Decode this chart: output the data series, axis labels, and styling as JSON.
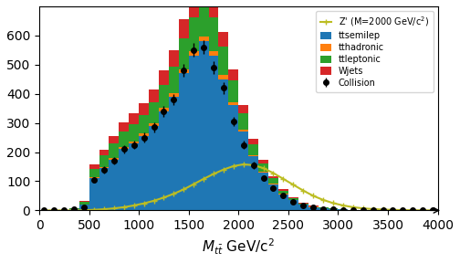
{
  "bin_edges": [
    0,
    100,
    200,
    300,
    400,
    500,
    600,
    700,
    800,
    900,
    1000,
    1100,
    1200,
    1300,
    1400,
    1500,
    1600,
    1700,
    1800,
    1900,
    2000,
    2100,
    2200,
    2300,
    2400,
    2500,
    2600,
    2700,
    2800,
    2900,
    3000,
    3100,
    3200,
    3300,
    3400,
    3500,
    3600,
    3700,
    3800,
    3900,
    4000
  ],
  "ttsemilep": [
    0,
    0,
    0,
    5,
    20,
    110,
    145,
    175,
    210,
    230,
    255,
    290,
    340,
    390,
    470,
    530,
    580,
    530,
    450,
    360,
    270,
    185,
    130,
    90,
    55,
    35,
    20,
    12,
    8,
    5,
    3,
    2,
    1,
    0.5,
    0.3,
    0.2,
    0.1,
    0.05,
    0.02,
    0.01
  ],
  "tthadronic": [
    0,
    0,
    0,
    0,
    0,
    3,
    4,
    5,
    6,
    7,
    8,
    9,
    11,
    13,
    15,
    17,
    18,
    17,
    14,
    11,
    8,
    5,
    3.5,
    2.5,
    1.5,
    1,
    0.6,
    0.4,
    0.2,
    0.1,
    0.05,
    0.03,
    0.01,
    0,
    0,
    0,
    0,
    0,
    0,
    0
  ],
  "ttleptonic": [
    0,
    0,
    0,
    2,
    8,
    30,
    40,
    50,
    55,
    60,
    65,
    72,
    80,
    90,
    105,
    115,
    125,
    115,
    98,
    75,
    55,
    38,
    27,
    18,
    11,
    7,
    4,
    2.5,
    1.5,
    1,
    0.5,
    0.3,
    0.15,
    0.08,
    0.04,
    0.02,
    0.01,
    0,
    0,
    0
  ],
  "wjets": [
    0,
    0,
    0,
    1,
    5,
    15,
    20,
    25,
    30,
    35,
    40,
    45,
    50,
    55,
    65,
    70,
    75,
    65,
    50,
    38,
    28,
    18,
    12,
    8,
    5,
    3,
    2,
    1.2,
    0.7,
    0.4,
    0.2,
    0.1,
    0.05,
    0.02,
    0.01,
    0,
    0,
    0,
    0,
    0
  ],
  "collision": [
    0,
    0,
    2,
    5,
    12,
    105,
    140,
    170,
    210,
    225,
    250,
    285,
    340,
    380,
    480,
    550,
    560,
    490,
    420,
    305,
    225,
    155,
    110,
    75,
    50,
    30,
    18,
    10,
    5,
    3,
    2,
    1,
    0.5,
    0.3,
    0.1,
    0.05,
    0.03,
    0.01,
    0,
    0
  ],
  "collision_err": [
    0,
    0,
    1.4,
    2.2,
    3.5,
    10,
    12,
    13,
    14,
    15,
    16,
    17,
    18,
    19,
    22,
    23,
    24,
    22,
    20,
    17,
    15,
    12,
    10,
    9,
    7,
    5.5,
    4.2,
    3.2,
    2.2,
    1.7,
    1.4,
    1,
    0.7,
    0.5,
    0.3,
    0.2,
    0.17,
    0.1,
    0,
    0
  ],
  "zprime_centers": [
    50,
    150,
    250,
    350,
    450,
    550,
    650,
    750,
    850,
    950,
    1050,
    1150,
    1250,
    1350,
    1450,
    1550,
    1650,
    1750,
    1850,
    1950,
    2050,
    2150,
    2250,
    2350,
    2450,
    2550,
    2650,
    2750,
    2850,
    2950,
    3050,
    3150,
    3250,
    3350,
    3450,
    3550,
    3650,
    3750,
    3850,
    3950
  ],
  "zprime": [
    0,
    0,
    0,
    0,
    0.5,
    2,
    4,
    7,
    11,
    17,
    24,
    33,
    44,
    57,
    72,
    90,
    108,
    125,
    140,
    152,
    158,
    155,
    145,
    128,
    108,
    88,
    68,
    50,
    36,
    25,
    17,
    11,
    7,
    4.5,
    2.8,
    1.7,
    1,
    0.6,
    0.3,
    0.1
  ],
  "colors": {
    "ttsemilep": "#1f77b4",
    "tthadronic": "#ff7f0e",
    "ttleptonic": "#2ca02c",
    "wjets": "#d62728",
    "zprime": "#bcbd22"
  },
  "xlabel": "$M_{t\\bar{t}}$ GeV/c$^2$",
  "ylabel": "",
  "xlim": [
    0,
    4000
  ],
  "ylim": [
    0,
    700
  ],
  "yticks": [
    0,
    100,
    200,
    300,
    400,
    500,
    600
  ],
  "xticks": [
    0,
    500,
    1000,
    1500,
    2000,
    2500,
    3000,
    3500,
    4000
  ]
}
